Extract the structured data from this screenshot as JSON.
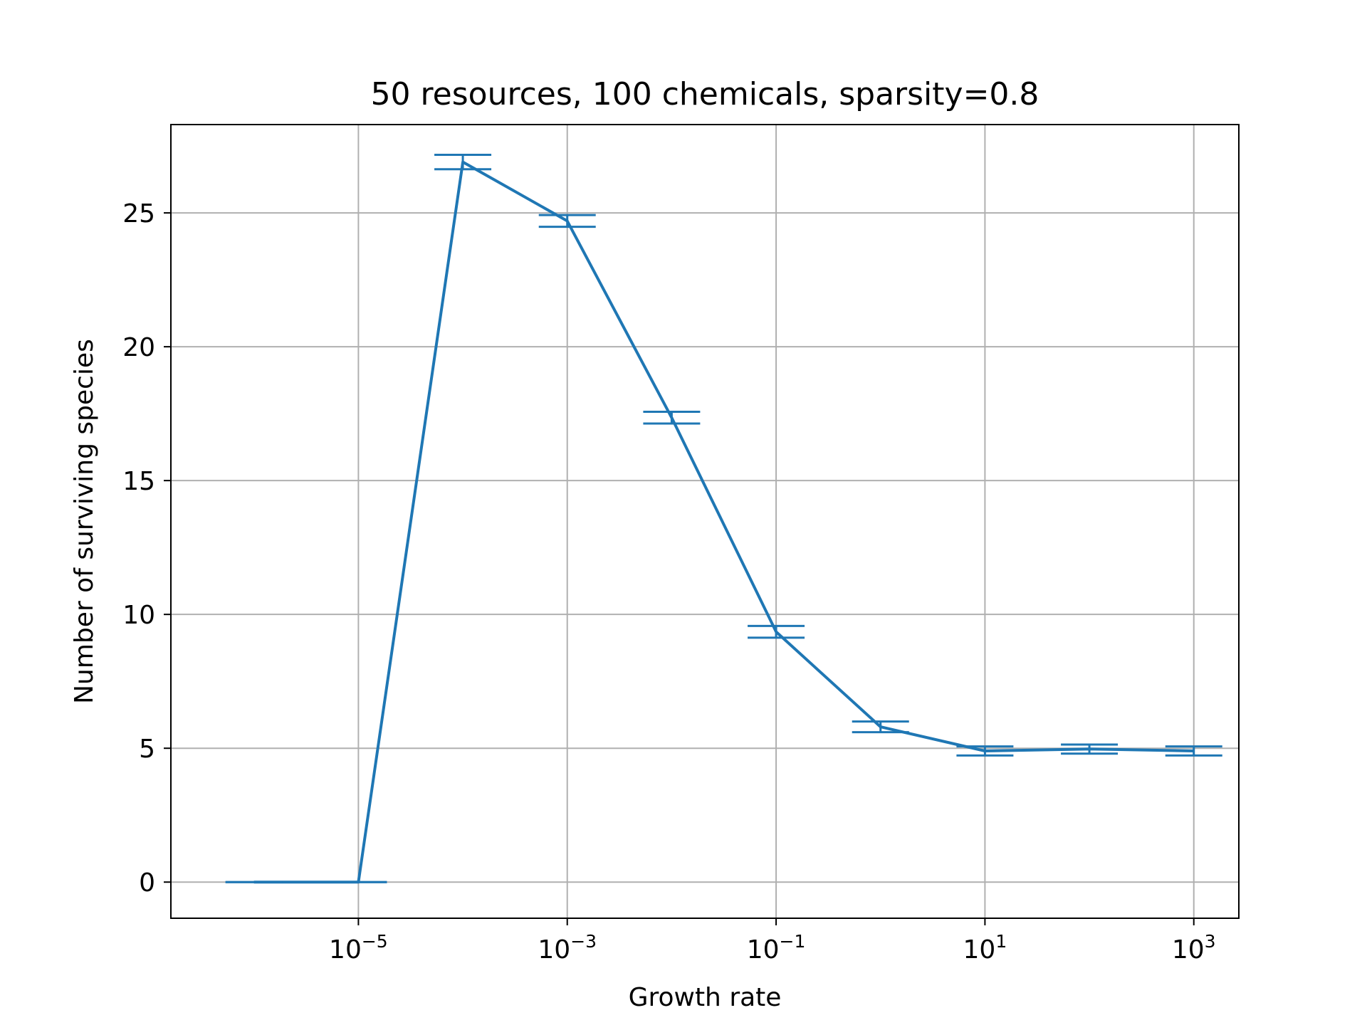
{
  "chart_data": {
    "type": "line",
    "title": "50 resources, 100 chemicals, sparsity=0.8",
    "xlabel": "Growth rate",
    "ylabel": "Number of surviving species",
    "xscale": "log",
    "grid": true,
    "legend": "none",
    "xlim": [
      1.6e-07,
      2700
    ],
    "ylim": [
      -1.35,
      28.3
    ],
    "x_ticks": [
      {
        "value": 1e-05,
        "base": "10",
        "exp": "−5"
      },
      {
        "value": 0.001,
        "base": "10",
        "exp": "−3"
      },
      {
        "value": 0.1,
        "base": "10",
        "exp": "−1"
      },
      {
        "value": 10,
        "base": "10",
        "exp": "1"
      },
      {
        "value": 1000,
        "base": "10",
        "exp": "3"
      }
    ],
    "y_ticks": [
      0,
      5,
      10,
      15,
      20,
      25
    ],
    "colors": {
      "series": "#1f77b4",
      "grid": "#b0b0b0"
    },
    "series": [
      {
        "x": [
          1e-06,
          1e-05,
          0.0001,
          0.001,
          0.01,
          0.1,
          1,
          10,
          100,
          1000
        ],
        "y": [
          0.0,
          0.0,
          26.9,
          24.7,
          17.35,
          9.35,
          5.8,
          4.9,
          4.97,
          4.9
        ],
        "yerr": [
          0.0,
          0.0,
          0.27,
          0.22,
          0.22,
          0.22,
          0.2,
          0.17,
          0.17,
          0.17
        ]
      }
    ]
  }
}
